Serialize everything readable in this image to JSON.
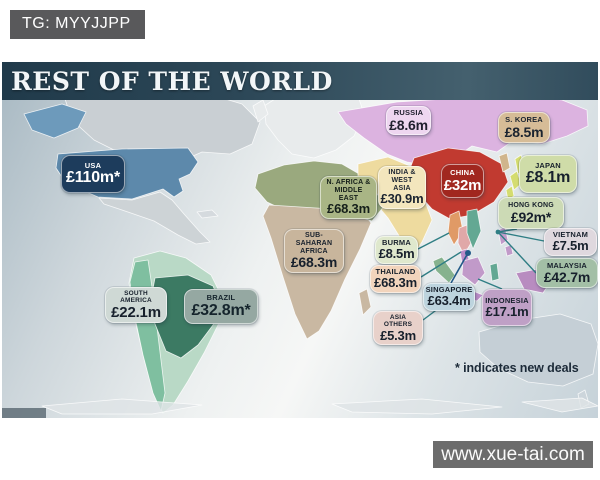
{
  "watermarks": {
    "top": "TG: MYYJJPP",
    "bottom": "www.xue-tai.com"
  },
  "map": {
    "title": "REST OF THE WORLD",
    "footnote": "* indicates new deals",
    "regions": [
      {
        "id": "usa",
        "name": "USA",
        "value": "£110m*",
        "label_bg": "#1d3c5c",
        "label_fg": "#ffffff"
      },
      {
        "id": "russia",
        "name": "RUSSIA",
        "value": "£8.6m",
        "label_bg": "#eed6f0",
        "label_fg": "#20202e"
      },
      {
        "id": "skorea",
        "name": "S. KOREA",
        "value": "£8.5m",
        "label_bg": "#d6bc97",
        "label_fg": "#1b2430"
      },
      {
        "id": "japan",
        "name": "JAPAN",
        "value": "£8.1m",
        "label_bg": "#cfdca8",
        "label_fg": "#17202c"
      },
      {
        "id": "china",
        "name": "CHINA",
        "value": "£32m",
        "label_bg": "#a1271f",
        "label_fg": "#ffffff"
      },
      {
        "id": "india",
        "name": "INDIA & WEST ASIA",
        "value": "£30.9m",
        "label_bg": "#f3e6bd",
        "label_fg": "#1b2430"
      },
      {
        "id": "nafrica",
        "name": "N. AFRICA & MIDDLE EAST",
        "value": "£68.3m",
        "label_bg": "#a9b585",
        "label_fg": "#151f1a"
      },
      {
        "id": "hongkong",
        "name": "HONG KONG",
        "value": "£92m*",
        "label_bg": "#ccdab5",
        "label_fg": "#17202c"
      },
      {
        "id": "vietnam",
        "name": "VIETNAM",
        "value": "£7.5m",
        "label_bg": "#dfd8de",
        "label_fg": "#17202c"
      },
      {
        "id": "subsaharan",
        "name": "SUB-SAHARAN AFRICA",
        "value": "£68.3m",
        "label_bg": "#c8b59c",
        "label_fg": "#17202c"
      },
      {
        "id": "burma",
        "name": "BURMA",
        "value": "£8.5m",
        "label_bg": "#dfe8cd",
        "label_fg": "#17202c"
      },
      {
        "id": "malaysia",
        "name": "MALAYSIA",
        "value": "£42.7m",
        "label_bg": "#a3bfa6",
        "label_fg": "#17202c"
      },
      {
        "id": "thailand",
        "name": "THAILAND",
        "value": "£68.3m",
        "label_bg": "#f2d4bc",
        "label_fg": "#17202c"
      },
      {
        "id": "singapore",
        "name": "SINGAPORE",
        "value": "£63.4m",
        "label_bg": "#bdd4de",
        "label_fg": "#17202c"
      },
      {
        "id": "indonesia",
        "name": "INDONESIA",
        "value": "£17.1m",
        "label_bg": "#bfa0c6",
        "label_fg": "#17202c"
      },
      {
        "id": "southamerica",
        "name": "SOUTH AMERICA",
        "value": "£22.1m",
        "label_bg": "#cfd9d5",
        "label_fg": "#17202c"
      },
      {
        "id": "brazil",
        "name": "BRAZIL",
        "value": "£32.8m*",
        "label_bg": "#95a8a2",
        "label_fg": "#15242c"
      },
      {
        "id": "asiaothers",
        "name": "ASIA OTHERS",
        "value": "£5.3m",
        "label_bg": "#e8d1ca",
        "label_fg": "#17202c"
      }
    ]
  }
}
